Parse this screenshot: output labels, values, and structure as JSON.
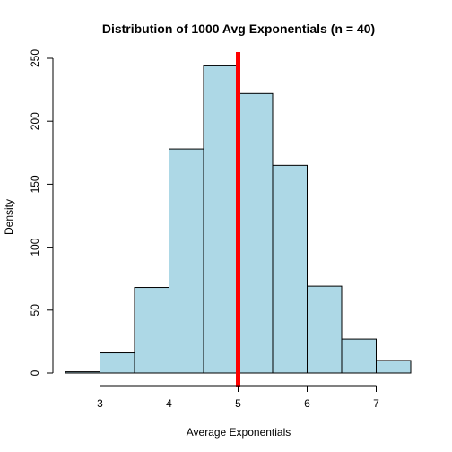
{
  "chart_data": {
    "type": "bar",
    "title": "Distribution of 1000 Avg Exponentials (n = 40)",
    "xlabel": "Average Exponentials",
    "ylabel": "Density",
    "xlim": [
      2.5,
      7.5
    ],
    "ylim": [
      0,
      250
    ],
    "x_ticks": [
      3,
      4,
      5,
      6,
      7
    ],
    "y_ticks": [
      0,
      50,
      100,
      150,
      200,
      250
    ],
    "bins": [
      {
        "x0": 2.5,
        "x1": 3.0,
        "value": 1
      },
      {
        "x0": 3.0,
        "x1": 3.5,
        "value": 16
      },
      {
        "x0": 3.5,
        "x1": 4.0,
        "value": 68
      },
      {
        "x0": 4.0,
        "x1": 4.5,
        "value": 178
      },
      {
        "x0": 4.5,
        "x1": 5.0,
        "value": 244
      },
      {
        "x0": 5.0,
        "x1": 5.5,
        "value": 222
      },
      {
        "x0": 5.5,
        "x1": 6.0,
        "value": 165
      },
      {
        "x0": 6.0,
        "x1": 6.5,
        "value": 69
      },
      {
        "x0": 6.5,
        "x1": 7.0,
        "value": 27
      },
      {
        "x0": 7.0,
        "x1": 7.5,
        "value": 10
      }
    ],
    "reference_line": {
      "x": 5,
      "color": "#ff0000"
    },
    "bar_color": "#add8e6",
    "grid": false,
    "legend": "none"
  }
}
